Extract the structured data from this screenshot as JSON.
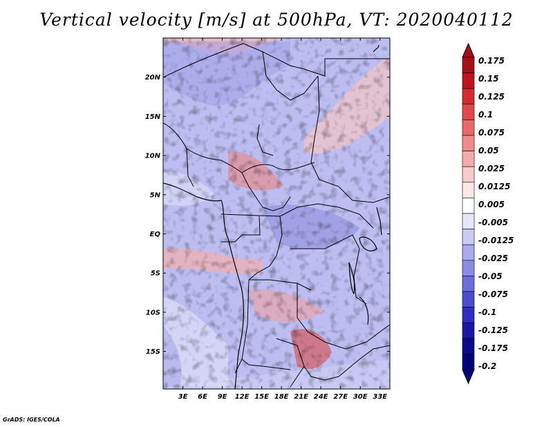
{
  "title": "Vertical velocity [m/s] at 500hPa, VT: 2020040112",
  "credit": "GrADS: IGES/COLA",
  "map": {
    "region": "Central Africa",
    "lat_labels": [
      "20N",
      "15N",
      "10N",
      "5N",
      "EQ",
      "5S",
      "10S",
      "15S"
    ],
    "lat_values": [
      20,
      15,
      10,
      5,
      0,
      -5,
      -10,
      -15
    ],
    "lon_labels": [
      "3E",
      "6E",
      "9E",
      "12E",
      "15E",
      "18E",
      "21E",
      "24E",
      "27E",
      "30E",
      "33E"
    ],
    "lon_values": [
      3,
      6,
      9,
      12,
      15,
      18,
      21,
      24,
      27,
      30,
      33
    ],
    "lon_range": [
      0,
      34.5
    ],
    "lat_range": [
      -19.8,
      25
    ]
  },
  "colorbar": {
    "labels": [
      "0.175",
      "0.15",
      "0.125",
      "0.1",
      "0.075",
      "0.05",
      "0.025",
      "0.0125",
      "0.005",
      "-0.005",
      "-0.0125",
      "-0.025",
      "-0.05",
      "-0.075",
      "-0.1",
      "-0.125",
      "-0.175",
      "-0.2"
    ],
    "colors": [
      "#a50f15",
      "#c1121f",
      "#d62b2b",
      "#e24848",
      "#ec6868",
      "#f28a8a",
      "#f7aaaa",
      "#fbcaca",
      "#fde6e6",
      "#ffffff",
      "#e6e6fb",
      "#cacaf5",
      "#aaaaef",
      "#8c8ce6",
      "#6c6cdd",
      "#4c4cd0",
      "#2e2ec2",
      "#1818a8",
      "#0a0a8c",
      "#000080"
    ],
    "top_arrow_color": "#a50f15",
    "bottom_arrow_color": "#000080"
  }
}
